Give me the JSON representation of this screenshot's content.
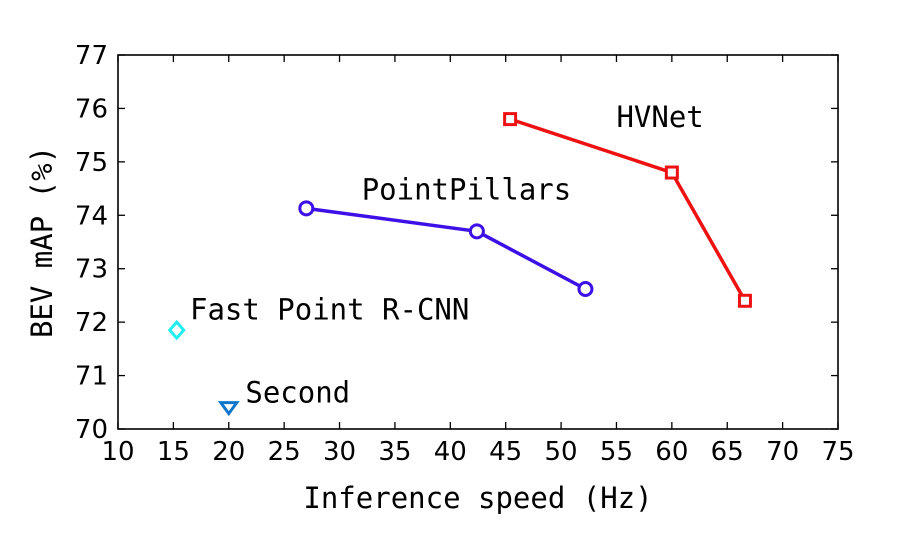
{
  "chart_data": {
    "type": "scatter",
    "title": "",
    "xlabel": "Inference speed (Hz)",
    "ylabel": "BEV mAP (%)",
    "xlim": [
      10,
      75
    ],
    "ylim": [
      70,
      77
    ],
    "xticks": [
      10,
      15,
      20,
      25,
      30,
      35,
      40,
      45,
      50,
      55,
      60,
      65,
      70,
      75
    ],
    "yticks": [
      70,
      71,
      72,
      73,
      74,
      75,
      76,
      77
    ],
    "grid": false,
    "legend": "none",
    "series": [
      {
        "name": "HVNet",
        "color": "#ee1111",
        "marker": "square",
        "line": true,
        "x": [
          45.4,
          60.0,
          66.6
        ],
        "y": [
          75.8,
          74.8,
          72.4
        ],
        "label_at": [
          55,
          75.65
        ]
      },
      {
        "name": "PointPillars",
        "color": "#3d10e8",
        "marker": "circle",
        "line": true,
        "x": [
          27.0,
          42.4,
          52.2
        ],
        "y": [
          74.13,
          73.7,
          72.62
        ],
        "label_at": [
          32,
          74.3
        ]
      },
      {
        "name": "Fast Point R-CNN",
        "color": "#22eeee",
        "marker": "diamond",
        "line": false,
        "x": [
          15.3
        ],
        "y": [
          71.85
        ],
        "label_at": [
          16.5,
          72.05
        ]
      },
      {
        "name": "Second",
        "color": "#1177cc",
        "marker": "triangle-down",
        "line": false,
        "x": [
          20.0
        ],
        "y": [
          70.4
        ],
        "label_at": [
          21.5,
          70.5
        ]
      }
    ]
  }
}
